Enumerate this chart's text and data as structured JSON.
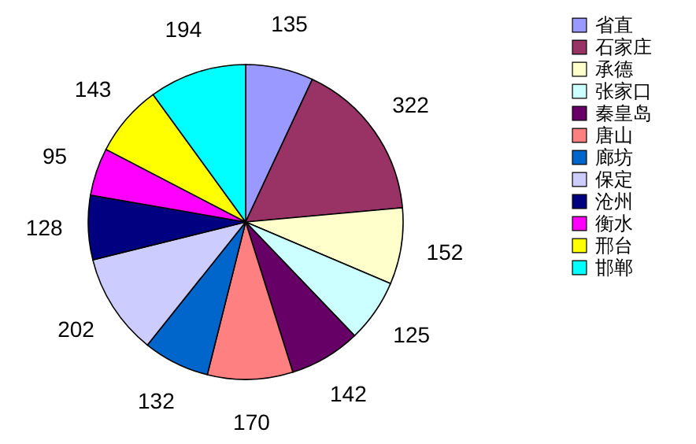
{
  "chart_data": {
    "type": "pie",
    "categories": [
      "省直",
      "石家庄",
      "承德",
      "张家口",
      "秦皇岛",
      "唐山",
      "廊坊",
      "保定",
      "沧州",
      "衡水",
      "邢台",
      "邯郸"
    ],
    "values": [
      135,
      322,
      152,
      125,
      142,
      170,
      132,
      202,
      128,
      95,
      143,
      194
    ],
    "colors": [
      "#9999ff",
      "#993366",
      "#ffffcc",
      "#ccffff",
      "#660066",
      "#ff8080",
      "#0066cc",
      "#ccccff",
      "#000080",
      "#ff00ff",
      "#ffff00",
      "#00ffff"
    ],
    "data_labels": true,
    "legend": "right"
  }
}
